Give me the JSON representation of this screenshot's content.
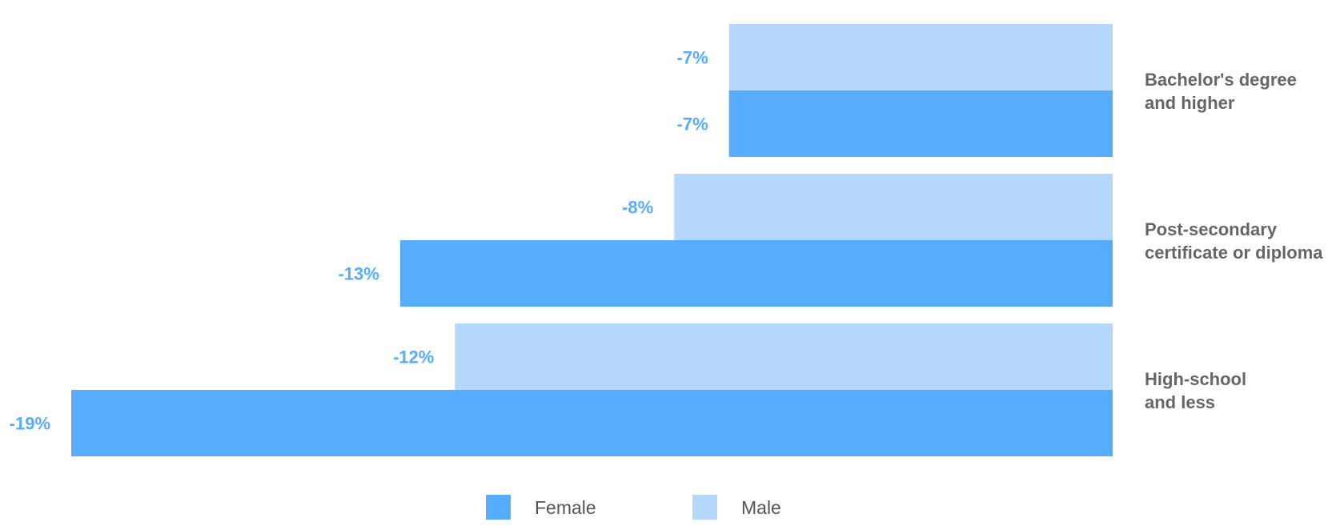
{
  "chart_data": {
    "type": "bar",
    "orientation": "horizontal",
    "categories": [
      [
        "Bachelor's degree",
        "and higher"
      ],
      [
        "Post-secondary",
        "certificate or diploma"
      ],
      [
        "High-school",
        "and less"
      ]
    ],
    "series": [
      {
        "name": "Male",
        "values": [
          -7,
          -8,
          -12
        ],
        "labels": [
          "-7%",
          "-8%",
          "-12%"
        ],
        "color": "#b3d7fd"
      },
      {
        "name": "Female",
        "values": [
          -7,
          -13,
          -19
        ],
        "labels": [
          "-7%",
          "-13%",
          "-19%"
        ],
        "color": "#57acfd"
      }
    ],
    "xlim": [
      -19,
      0
    ],
    "value_label_color": "#57acfd",
    "legend": {
      "placement": "bottom-center",
      "items": [
        {
          "name": "Female",
          "color": "#57acfd"
        },
        {
          "name": "Male",
          "color": "#b3d7fd"
        }
      ]
    },
    "grid": false
  }
}
